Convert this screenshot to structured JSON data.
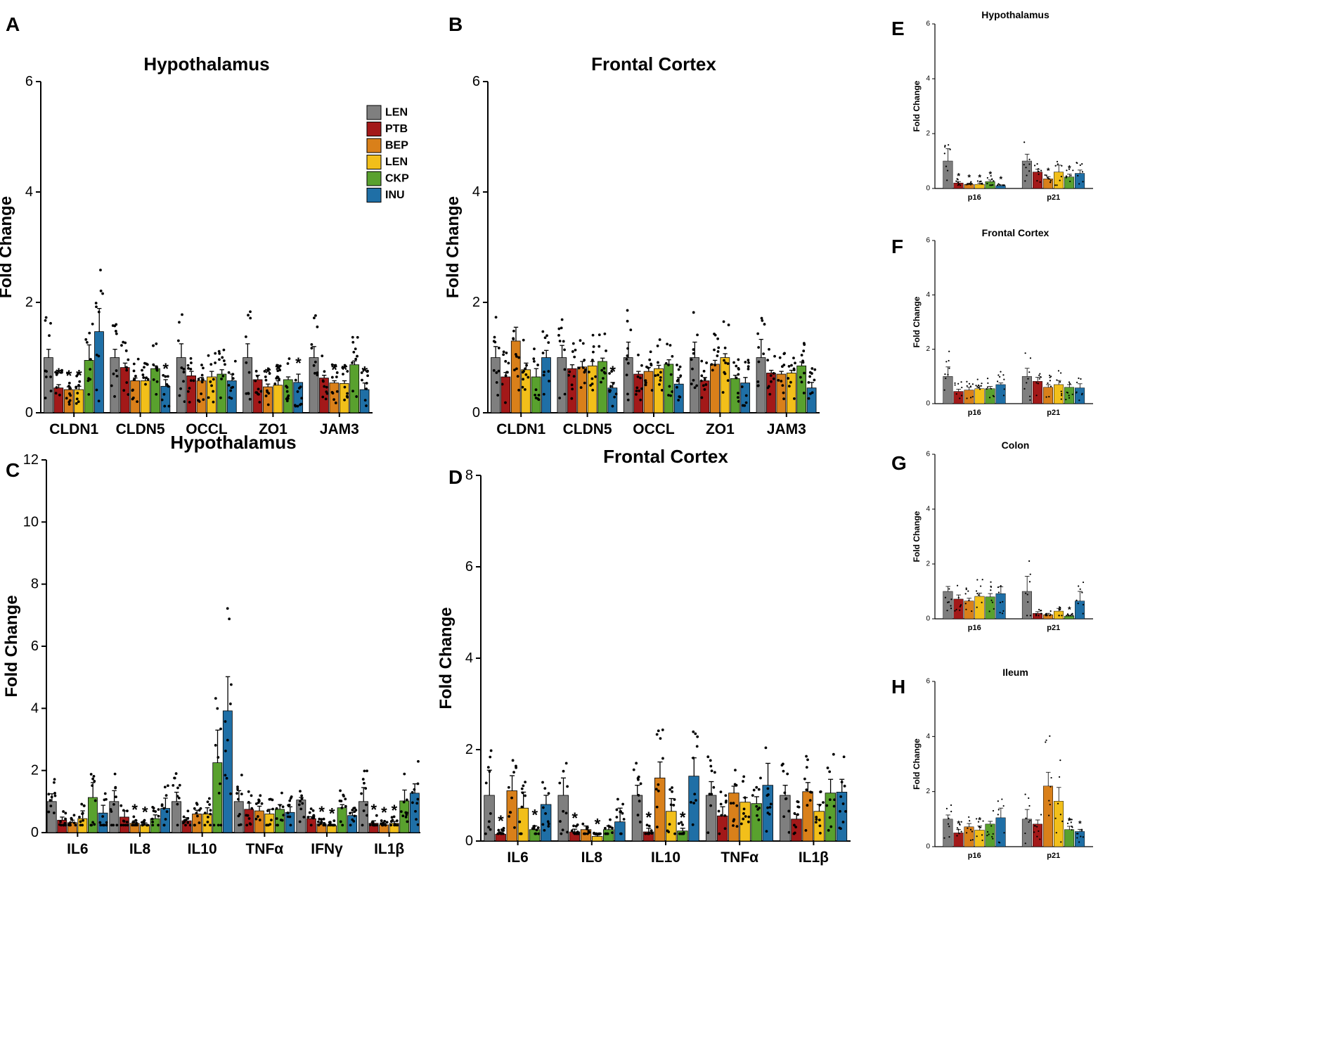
{
  "colors": {
    "LEN": "#7f7f7f",
    "PTB": "#a31919",
    "BEP": "#d9801a",
    "LEN2": "#f2bf1a",
    "CKP": "#59a12e",
    "INU": "#1f6fa6"
  },
  "chart_data": [
    {
      "type": "bar",
      "panel": "A",
      "title": "Hypothalamus",
      "ylabel": "Fold Change",
      "xlabel": "",
      "ylim": [
        0,
        6
      ],
      "yticks": [
        "0",
        "2",
        "4",
        "6"
      ],
      "categories": [
        "CLDN1",
        "CLDN5",
        "OCCL",
        "ZO1",
        "JAM3"
      ],
      "legend": [
        "LEN",
        "PTB",
        "BEP",
        "LEN",
        "CKP",
        "INU"
      ],
      "series": [
        {
          "name": "LEN",
          "values": [
            1.0,
            1.0,
            1.0,
            1.0,
            1.0
          ],
          "errors": [
            0.15,
            0.15,
            0.25,
            0.25,
            0.2
          ]
        },
        {
          "name": "PTB",
          "values": [
            0.45,
            0.82,
            0.67,
            0.6,
            0.63
          ],
          "errors": [
            0.06,
            0.08,
            0.08,
            0.08,
            0.05
          ]
        },
        {
          "name": "BEP",
          "values": [
            0.42,
            0.58,
            0.58,
            0.47,
            0.54
          ],
          "errors": [
            0.05,
            0.05,
            0.06,
            0.05,
            0.04
          ]
        },
        {
          "name": "LEN",
          "values": [
            0.42,
            0.58,
            0.65,
            0.5,
            0.53
          ],
          "errors": [
            0.06,
            0.06,
            0.1,
            0.08,
            0.05
          ]
        },
        {
          "name": "CKP",
          "values": [
            0.95,
            0.8,
            0.7,
            0.6,
            0.87
          ],
          "errors": [
            0.28,
            0.05,
            0.08,
            0.05,
            0.07
          ]
        },
        {
          "name": "INU",
          "values": [
            1.47,
            0.48,
            0.58,
            0.55,
            0.42
          ],
          "errors": [
            0.42,
            0.12,
            0.12,
            0.15,
            0.12
          ]
        }
      ],
      "stars": [
        "*",
        "*",
        "*",
        "*",
        "*",
        "*",
        "*",
        "*",
        "*",
        "*"
      ]
    },
    {
      "type": "bar",
      "panel": "B",
      "title": "Frontal Cortex",
      "ylabel": "Fold Change",
      "xlabel": "",
      "ylim": [
        0,
        6
      ],
      "yticks": [
        "0",
        "2",
        "4",
        "6"
      ],
      "categories": [
        "CLDN1",
        "CLDN5",
        "OCCL",
        "ZO1",
        "JAM3"
      ],
      "series": [
        {
          "name": "LEN",
          "values": [
            1.0,
            1.0,
            1.0,
            1.0,
            1.0
          ],
          "errors": [
            0.2,
            0.22,
            0.28,
            0.28,
            0.33
          ]
        },
        {
          "name": "PTB",
          "values": [
            0.65,
            0.8,
            0.7,
            0.58,
            0.72
          ],
          "errors": [
            0.08,
            0.07,
            0.05,
            0.06,
            0.05
          ]
        },
        {
          "name": "BEP",
          "values": [
            1.3,
            0.83,
            0.75,
            0.88,
            0.7
          ],
          "errors": [
            0.25,
            0.1,
            0.07,
            0.07,
            0.05
          ]
        },
        {
          "name": "LEN",
          "values": [
            0.78,
            0.85,
            0.8,
            1.0,
            0.72
          ],
          "errors": [
            0.12,
            0.08,
            0.06,
            0.07,
            0.05
          ]
        },
        {
          "name": "CKP",
          "values": [
            0.65,
            0.93,
            0.88,
            0.62,
            0.85
          ],
          "errors": [
            0.15,
            0.06,
            0.08,
            0.06,
            0.07
          ]
        },
        {
          "name": "INU",
          "values": [
            1.0,
            0.45,
            0.52,
            0.54,
            0.45
          ],
          "errors": [
            0.13,
            0.1,
            0.12,
            0.1,
            0.1
          ]
        }
      ],
      "stars": [
        "*"
      ]
    },
    {
      "type": "bar",
      "panel": "C",
      "title": "Hypothalamus",
      "ylabel": "Fold Change",
      "xlabel": "",
      "ylim": [
        0,
        12
      ],
      "yticks": [
        "0",
        "2",
        "4",
        "6",
        "8",
        "10",
        "12"
      ],
      "categories": [
        "IL6",
        "IL8",
        "IL10",
        "TNFα",
        "IFNγ",
        "IL1β"
      ],
      "series": [
        {
          "name": "LEN",
          "values": [
            1.0,
            1.0,
            1.0,
            1.0,
            1.05,
            1.0
          ],
          "errors": [
            0.25,
            0.35,
            0.3,
            0.35,
            0.08,
            0.45
          ]
        },
        {
          "name": "PTB",
          "values": [
            0.4,
            0.5,
            0.38,
            0.75,
            0.45,
            0.3
          ],
          "errors": [
            0.1,
            0.2,
            0.1,
            0.2,
            0.06,
            0.08
          ]
        },
        {
          "name": "BEP",
          "values": [
            0.32,
            0.3,
            0.6,
            0.7,
            0.28,
            0.25
          ],
          "errors": [
            0.08,
            0.08,
            0.12,
            0.15,
            0.04,
            0.05
          ]
        },
        {
          "name": "LEN",
          "values": [
            0.45,
            0.25,
            0.6,
            0.6,
            0.22,
            0.3
          ],
          "errors": [
            0.25,
            0.06,
            0.2,
            0.15,
            0.04,
            0.06
          ]
        },
        {
          "name": "CKP",
          "values": [
            1.13,
            0.45,
            2.25,
            0.75,
            0.8,
            1.02
          ],
          "errors": [
            0.48,
            0.12,
            1.05,
            0.15,
            0.1,
            0.35
          ]
        },
        {
          "name": "INU",
          "values": [
            0.63,
            0.78,
            3.92,
            0.65,
            0.55,
            1.27
          ],
          "errors": [
            0.25,
            0.33,
            1.1,
            0.18,
            0.1,
            0.3
          ]
        }
      ],
      "stars": [
        "*",
        "*",
        "*",
        "*",
        "*",
        "*",
        "*"
      ]
    },
    {
      "type": "bar",
      "panel": "D",
      "title": "Frontal Cortex",
      "ylabel": "Fold Change",
      "xlabel": "",
      "ylim": [
        0,
        8
      ],
      "yticks": [
        "0",
        "2",
        "4",
        "6",
        "8"
      ],
      "categories": [
        "IL6",
        "IL8",
        "IL10",
        "TNFα",
        "IL1β"
      ],
      "series": [
        {
          "name": "LEN",
          "values": [
            1.0,
            1.0,
            1.0,
            1.0,
            1.0
          ],
          "errors": [
            0.55,
            0.38,
            0.22,
            0.3,
            0.22
          ]
        },
        {
          "name": "PTB",
          "values": [
            0.15,
            0.2,
            0.2,
            0.55,
            0.48
          ],
          "errors": [
            0.05,
            0.06,
            0.08,
            0.2,
            0.1
          ]
        },
        {
          "name": "BEP",
          "values": [
            1.1,
            0.25,
            1.38,
            1.05,
            1.08
          ],
          "errors": [
            0.33,
            0.08,
            0.35,
            0.15,
            0.2
          ]
        },
        {
          "name": "LEN",
          "values": [
            0.72,
            0.1,
            0.65,
            0.85,
            0.65
          ],
          "errors": [
            0.35,
            0.03,
            0.28,
            0.1,
            0.15
          ]
        },
        {
          "name": "CKP",
          "values": [
            0.25,
            0.25,
            0.22,
            0.82,
            1.05
          ],
          "errors": [
            0.08,
            0.08,
            0.06,
            0.15,
            0.3
          ]
        },
        {
          "name": "INU",
          "values": [
            0.8,
            0.42,
            1.42,
            1.22,
            1.07
          ],
          "errors": [
            0.2,
            0.3,
            0.4,
            0.48,
            0.28
          ]
        }
      ],
      "stars": [
        "*",
        "*",
        "*",
        "*",
        "*",
        "*"
      ]
    },
    {
      "type": "bar",
      "panel": "E",
      "title": "Hypothalamus",
      "ylabel": "Fold Change",
      "xlabel": "",
      "ylim": [
        0,
        6
      ],
      "yticks": [
        "0",
        "2",
        "4",
        "6"
      ],
      "categories": [
        "p16",
        "p21"
      ],
      "series": [
        {
          "name": "LEN",
          "values": [
            1.0,
            1.0
          ],
          "errors": [
            0.45,
            0.25
          ]
        },
        {
          "name": "PTB",
          "values": [
            0.2,
            0.6
          ],
          "errors": [
            0.05,
            0.1
          ]
        },
        {
          "name": "BEP",
          "values": [
            0.15,
            0.35
          ],
          "errors": [
            0.04,
            0.08
          ]
        },
        {
          "name": "LEN",
          "values": [
            0.15,
            0.6
          ],
          "errors": [
            0.04,
            0.25
          ]
        },
        {
          "name": "CKP",
          "values": [
            0.25,
            0.42
          ],
          "errors": [
            0.06,
            0.1
          ]
        },
        {
          "name": "INU",
          "values": [
            0.1,
            0.55
          ],
          "errors": [
            0.03,
            0.12
          ]
        }
      ],
      "stars": [
        "*",
        "*",
        "*",
        "*",
        "*",
        "*",
        "*"
      ]
    },
    {
      "type": "bar",
      "panel": "F",
      "title": "Frontal Cortex",
      "ylabel": "Fold Change",
      "xlabel": "",
      "ylim": [
        0,
        6
      ],
      "yticks": [
        "0",
        "2",
        "4",
        "6"
      ],
      "categories": [
        "p16",
        "p21"
      ],
      "series": [
        {
          "name": "LEN",
          "values": [
            1.0,
            1.0
          ],
          "errors": [
            0.35,
            0.3
          ]
        },
        {
          "name": "PTB",
          "values": [
            0.45,
            0.82
          ],
          "errors": [
            0.08,
            0.15
          ]
        },
        {
          "name": "BEP",
          "values": [
            0.5,
            0.6
          ],
          "errors": [
            0.1,
            0.1
          ]
        },
        {
          "name": "LEN",
          "values": [
            0.55,
            0.7
          ],
          "errors": [
            0.1,
            0.15
          ]
        },
        {
          "name": "CKP",
          "values": [
            0.55,
            0.6
          ],
          "errors": [
            0.08,
            0.1
          ]
        },
        {
          "name": "INU",
          "values": [
            0.7,
            0.58
          ],
          "errors": [
            0.06,
            0.15
          ]
        }
      ],
      "stars": []
    },
    {
      "type": "bar",
      "panel": "G",
      "title": "Colon",
      "ylabel": "Fold Change",
      "xlabel": "",
      "ylim": [
        0,
        6
      ],
      "yticks": [
        "0",
        "2",
        "4",
        "6"
      ],
      "categories": [
        "p16",
        "p21"
      ],
      "series": [
        {
          "name": "LEN",
          "values": [
            1.0,
            1.0
          ],
          "errors": [
            0.18,
            0.55
          ]
        },
        {
          "name": "PTB",
          "values": [
            0.72,
            0.2
          ],
          "errors": [
            0.15,
            0.06
          ]
        },
        {
          "name": "BEP",
          "values": [
            0.65,
            0.15
          ],
          "errors": [
            0.1,
            0.05
          ]
        },
        {
          "name": "LEN",
          "values": [
            0.82,
            0.28
          ],
          "errors": [
            0.12,
            0.1
          ]
        },
        {
          "name": "CKP",
          "values": [
            0.8,
            0.1
          ],
          "errors": [
            0.12,
            0.03
          ]
        },
        {
          "name": "INU",
          "values": [
            0.92,
            0.65
          ],
          "errors": [
            0.25,
            0.35
          ]
        }
      ],
      "stars": [
        "*"
      ]
    },
    {
      "type": "bar",
      "panel": "H",
      "title": "Ileum",
      "ylabel": "Fold Change",
      "xlabel": "",
      "ylim": [
        0,
        6
      ],
      "yticks": [
        "0",
        "2",
        "4",
        "6"
      ],
      "categories": [
        "p16",
        "p21"
      ],
      "series": [
        {
          "name": "LEN",
          "values": [
            1.0,
            1.0
          ],
          "errors": [
            0.15,
            0.35
          ]
        },
        {
          "name": "PTB",
          "values": [
            0.5,
            0.82
          ],
          "errors": [
            0.12,
            0.15
          ]
        },
        {
          "name": "BEP",
          "values": [
            0.72,
            2.2
          ],
          "errors": [
            0.12,
            0.5
          ]
        },
        {
          "name": "LEN",
          "values": [
            0.6,
            1.65
          ],
          "errors": [
            0.15,
            0.5
          ]
        },
        {
          "name": "CKP",
          "values": [
            0.82,
            0.62
          ],
          "errors": [
            0.1,
            0.12
          ]
        },
        {
          "name": "INU",
          "values": [
            1.05,
            0.55
          ],
          "errors": [
            0.35,
            0.08
          ]
        }
      ],
      "stars": [
        "*",
        "*",
        "*",
        "*"
      ]
    }
  ]
}
